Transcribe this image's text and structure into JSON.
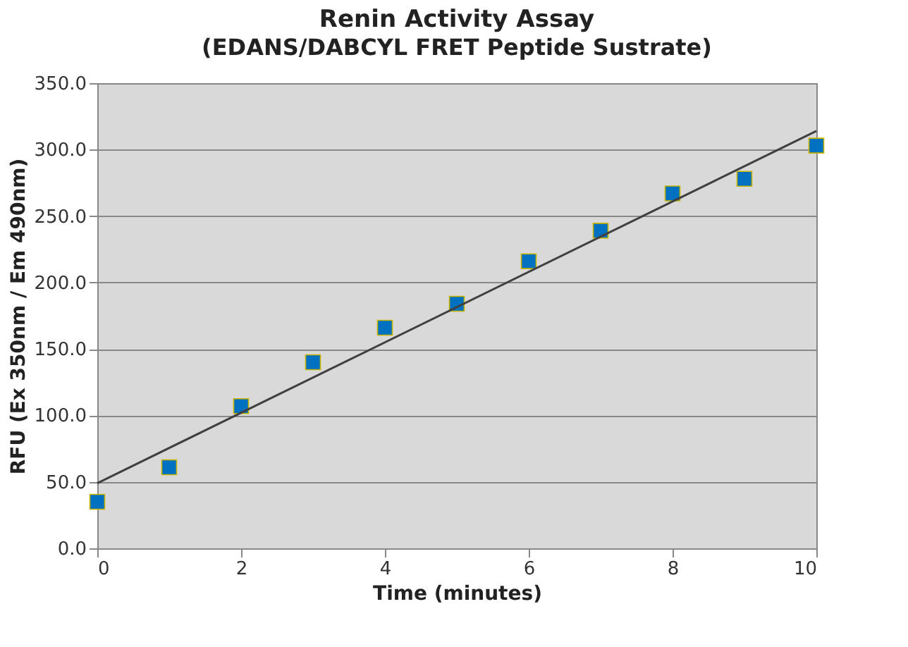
{
  "chart_data": {
    "type": "scatter",
    "title": "Renin Activity Assay",
    "subtitle": "(EDANS/DABCYL FRET Peptide Sustrate)",
    "xlabel": "Time (minutes)",
    "ylabel": "RFU (Ex 350nm / Em 490nm)",
    "x": [
      0,
      1,
      2,
      3,
      4,
      5,
      6,
      7,
      8,
      9,
      10
    ],
    "series": [
      {
        "color": "#0070c0",
        "marker": "square",
        "values": [
          35,
          61,
          107,
          140,
          166,
          184,
          216,
          239,
          267,
          278,
          303
        ]
      },
      {
        "type": "line",
        "color": "#404040",
        "x": [
          0,
          10
        ],
        "values": [
          49,
          314
        ],
        "marker": "none",
        "line_style": "solid"
      }
    ],
    "xlim": [
      0,
      10
    ],
    "xticks": [
      0,
      2,
      4,
      6,
      8,
      10
    ],
    "ylim": [
      0,
      350
    ],
    "yticks": [
      {
        "value": 0,
        "label": "0.0"
      },
      {
        "value": 50,
        "label": "50.0"
      },
      {
        "value": 100,
        "label": "100.0"
      },
      {
        "value": 150,
        "label": "150.0"
      },
      {
        "value": 200,
        "label": "200.0"
      },
      {
        "value": 250,
        "label": "250.0"
      },
      {
        "value": 300,
        "label": "300.0"
      },
      {
        "value": 350,
        "label": "350.0"
      }
    ],
    "grid": "y"
  }
}
